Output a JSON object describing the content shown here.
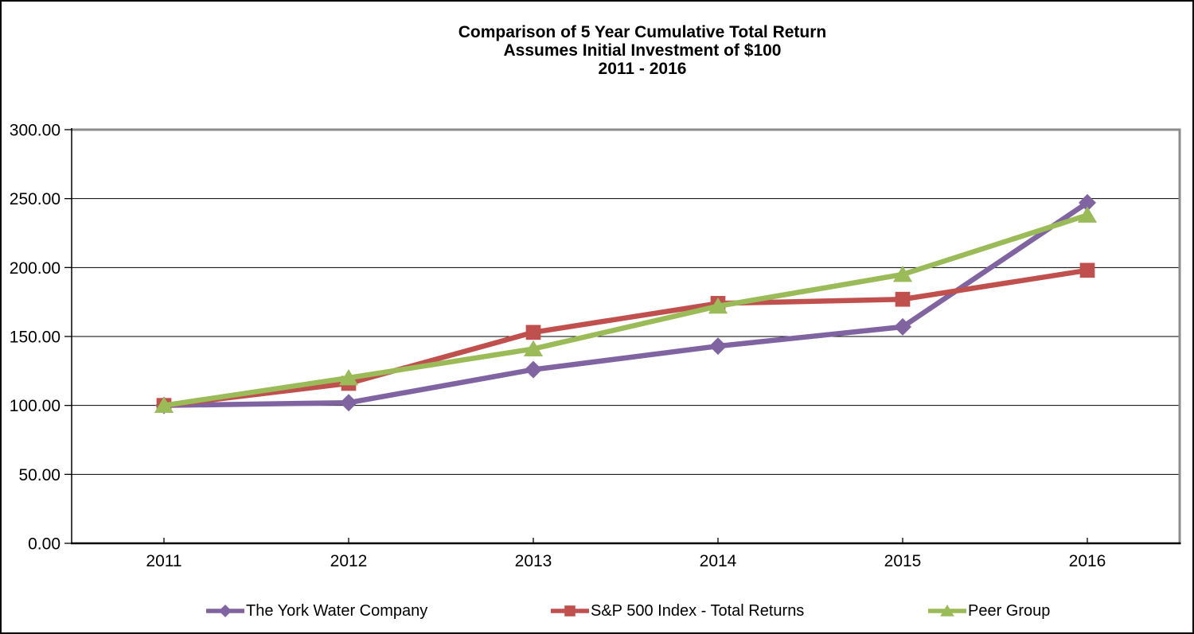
{
  "title": {
    "line1": "Comparison of 5 Year Cumulative Total Return",
    "line2": "Assumes Initial Investment of $100",
    "line3": "2011 - 2016"
  },
  "chart_data": {
    "type": "line",
    "categories": [
      "2011",
      "2012",
      "2013",
      "2014",
      "2015",
      "2016"
    ],
    "series": [
      {
        "name": "The York Water Company",
        "marker": "diamond",
        "color": "#8064A2",
        "values": [
          100,
          102,
          126,
          143,
          157,
          247
        ]
      },
      {
        "name": "S&P 500 Index - Total Returns",
        "marker": "square",
        "color": "#C0504D",
        "values": [
          100,
          116,
          153,
          174,
          177,
          198
        ]
      },
      {
        "name": "Peer Group",
        "marker": "triangle",
        "color": "#9BBB59",
        "values": [
          100,
          120,
          141,
          172,
          195,
          238
        ]
      }
    ],
    "ylim": [
      0,
      300
    ],
    "y_tick_step": 50,
    "y_tick_labels": [
      "0.00",
      "50.00",
      "100.00",
      "150.00",
      "200.00",
      "250.00",
      "300.00"
    ],
    "xlabel": "",
    "ylabel": "",
    "grid": "horizontal",
    "legend_position": "bottom"
  },
  "colors": {
    "axis": "#000000",
    "gridline": "#000000",
    "plot_border": "#8C8C8C",
    "background": "#FFFFFF",
    "text": "#000000"
  }
}
